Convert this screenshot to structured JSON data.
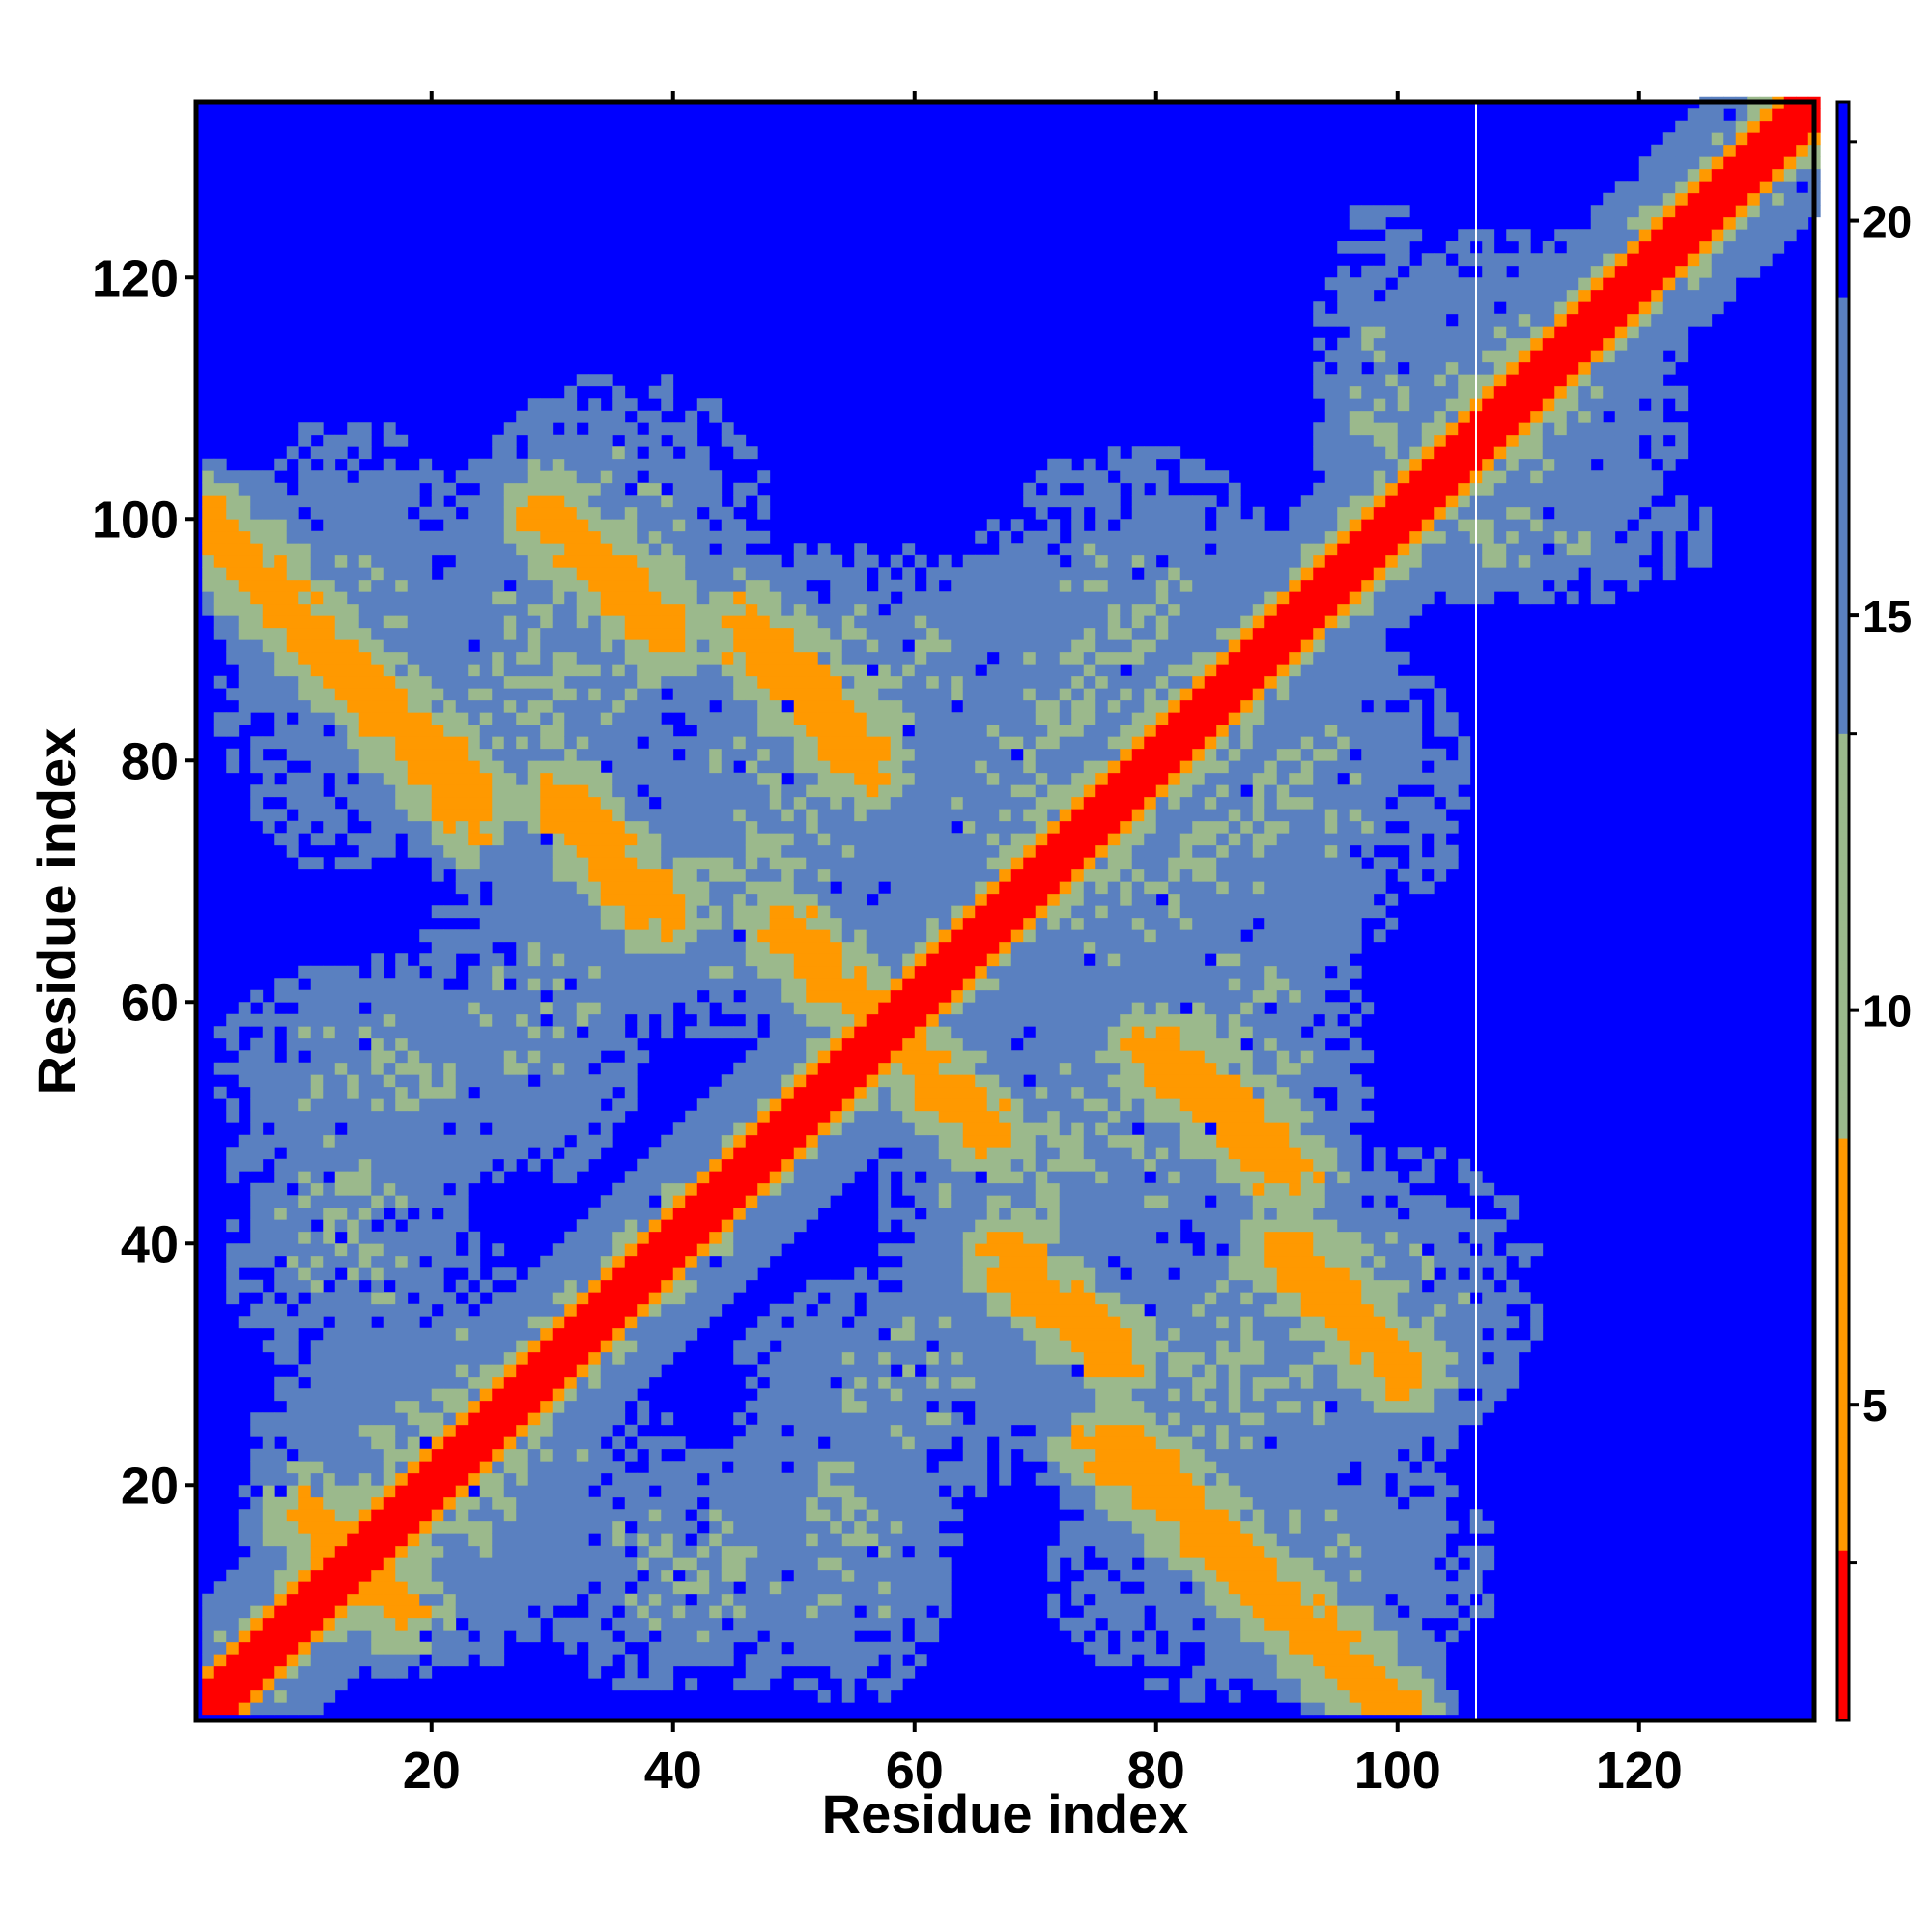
{
  "chart_data": {
    "type": "heatmap",
    "title": "",
    "xlabel": "Residue index",
    "ylabel": "Residue index",
    "xlim": [
      1,
      134
    ],
    "ylim": [
      1,
      134
    ],
    "xticks": [
      20,
      40,
      60,
      80,
      100,
      120
    ],
    "yticks": [
      20,
      40,
      60,
      80,
      100,
      120
    ],
    "colorbar": {
      "ticks": [
        5,
        10,
        15,
        20
      ],
      "range": [
        1,
        21.5
      ],
      "colors": {
        "low": "#ff0000",
        "mid": "#ff9900",
        "pale": "#9bb98c",
        "steel": "#5a80c0",
        "high": "#0000ff"
      }
    },
    "highlight_column_x": 106.5,
    "main_diagonal": {
      "from": [
        1,
        1
      ],
      "to": [
        134,
        134
      ],
      "value": 2
    },
    "antidiagonal_bands": [
      {
        "from": [
          1,
          99
        ],
        "to": [
          23,
          77
        ],
        "value": 7
      },
      {
        "from": [
          29,
          100
        ],
        "to": [
          39,
          90
        ],
        "value": 7
      },
      {
        "from": [
          46,
          91
        ],
        "to": [
          56,
          80
        ],
        "value": 7
      },
      {
        "from": [
          30,
          76
        ],
        "to": [
          39,
          67
        ],
        "value": 7
      },
      {
        "from": [
          49,
          65
        ],
        "to": [
          56,
          58
        ],
        "value": 7
      },
      {
        "from": [
          61,
          53
        ],
        "to": [
          66,
          49
        ],
        "value": 7
      },
      {
        "from": [
          79,
          55
        ],
        "to": [
          89,
          46
        ],
        "value": 7
      },
      {
        "from": [
          67,
          37
        ],
        "to": [
          76,
          31
        ],
        "value": 7
      },
      {
        "from": [
          90,
          38
        ],
        "to": [
          100,
          29
        ],
        "value": 7
      },
      {
        "from": [
          75,
          23
        ],
        "to": [
          99,
          1
        ],
        "value": 7
      },
      {
        "from": [
          9,
          17
        ],
        "to": [
          15,
          12
        ],
        "value": 7
      }
    ],
    "contact_regions": [
      {
        "x": [
          1,
          24
        ],
        "y": [
          70,
          108
        ],
        "value": 13
      },
      {
        "x": [
          22,
          48
        ],
        "y": [
          84,
          112
        ],
        "value": 13
      },
      {
        "x": [
          40,
          72
        ],
        "y": [
          76,
          98
        ],
        "value": 13
      },
      {
        "x": [
          26,
          62
        ],
        "y": [
          56,
          80
        ],
        "value": 13
      },
      {
        "x": [
          56,
          84
        ],
        "y": [
          58,
          98
        ],
        "value": 13
      },
      {
        "x": [
          70,
          106
        ],
        "y": [
          62,
          92
        ],
        "value": 13
      },
      {
        "x": [
          1,
          32
        ],
        "y": [
          44,
          64
        ],
        "value": 13
      },
      {
        "x": [
          4,
          40
        ],
        "y": [
          8,
          34
        ],
        "value": 13
      },
      {
        "x": [
          26,
          56
        ],
        "y": [
          2,
          24
        ],
        "value": 13
      },
      {
        "x": [
          44,
          74
        ],
        "y": [
          18,
          38
        ],
        "value": 13
      },
      {
        "x": [
          58,
          96
        ],
        "y": [
          36,
          62
        ],
        "value": 13
      },
      {
        "x": [
          68,
          106
        ],
        "y": [
          14,
          44
        ],
        "value": 13
      },
      {
        "x": [
          86,
          110
        ],
        "y": [
          24,
          36
        ],
        "value": 13
      },
      {
        "x": [
          96,
          122
        ],
        "y": [
          96,
          124
        ],
        "value": 13
      },
      {
        "x": [
          92,
          126
        ],
        "y": [
          92,
          104
        ],
        "value": 13
      }
    ]
  }
}
